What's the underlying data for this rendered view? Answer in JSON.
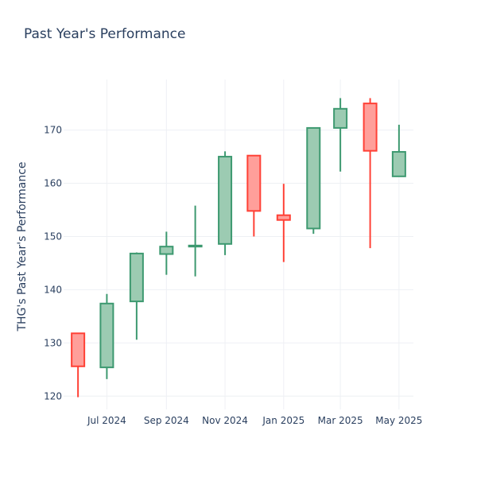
{
  "chart_data": {
    "type": "candlestick",
    "title": "Past Year's Performance",
    "xlabel": "",
    "ylabel": "THG's Past Year's Performance",
    "ylim": [
      117.5,
      179.5
    ],
    "y_ticks": [
      120,
      130,
      140,
      150,
      160,
      170
    ],
    "x_ticks": [
      {
        "label": "Jul 2024",
        "date": "2024-07-01"
      },
      {
        "label": "Sep 2024",
        "date": "2024-09-01"
      },
      {
        "label": "Nov 2024",
        "date": "2024-11-01"
      },
      {
        "label": "Jan 2025",
        "date": "2025-01-01"
      },
      {
        "label": "Mar 2025",
        "date": "2025-03-01"
      },
      {
        "label": "May 2025",
        "date": "2025-05-01"
      }
    ],
    "grid": true,
    "colors": {
      "increasing_fill": "#9ccbb2",
      "increasing_line": "#3d9970",
      "decreasing_fill": "#ff9f9a",
      "decreasing_line": "#ff4136",
      "grid": "#eef0f4",
      "text": "#2a3f5f"
    },
    "candles": [
      {
        "date": "2024-06-01",
        "open": 131.8,
        "high": 131.8,
        "low": 119.8,
        "close": 125.6
      },
      {
        "date": "2024-07-01",
        "open": 125.4,
        "high": 139.2,
        "low": 123.2,
        "close": 137.4
      },
      {
        "date": "2024-08-01",
        "open": 137.8,
        "high": 147.0,
        "low": 130.6,
        "close": 146.8
      },
      {
        "date": "2024-09-01",
        "open": 146.7,
        "high": 150.9,
        "low": 142.8,
        "close": 148.1
      },
      {
        "date": "2024-10-01",
        "open": 148.1,
        "high": 155.8,
        "low": 142.5,
        "close": 148.3
      },
      {
        "date": "2024-11-01",
        "open": 148.6,
        "high": 166.0,
        "low": 146.5,
        "close": 165.0
      },
      {
        "date": "2024-12-01",
        "open": 165.2,
        "high": 165.2,
        "low": 150.0,
        "close": 154.8
      },
      {
        "date": "2025-01-01",
        "open": 154.0,
        "high": 159.9,
        "low": 145.2,
        "close": 153.1
      },
      {
        "date": "2025-02-01",
        "open": 151.5,
        "high": 170.5,
        "low": 150.5,
        "close": 170.4
      },
      {
        "date": "2025-03-01",
        "open": 170.4,
        "high": 176.0,
        "low": 162.2,
        "close": 174.0
      },
      {
        "date": "2025-04-01",
        "open": 175.0,
        "high": 176.0,
        "low": 147.8,
        "close": 166.1
      },
      {
        "date": "2025-05-01",
        "open": 161.3,
        "high": 171.0,
        "low": 161.3,
        "close": 165.9
      }
    ]
  }
}
